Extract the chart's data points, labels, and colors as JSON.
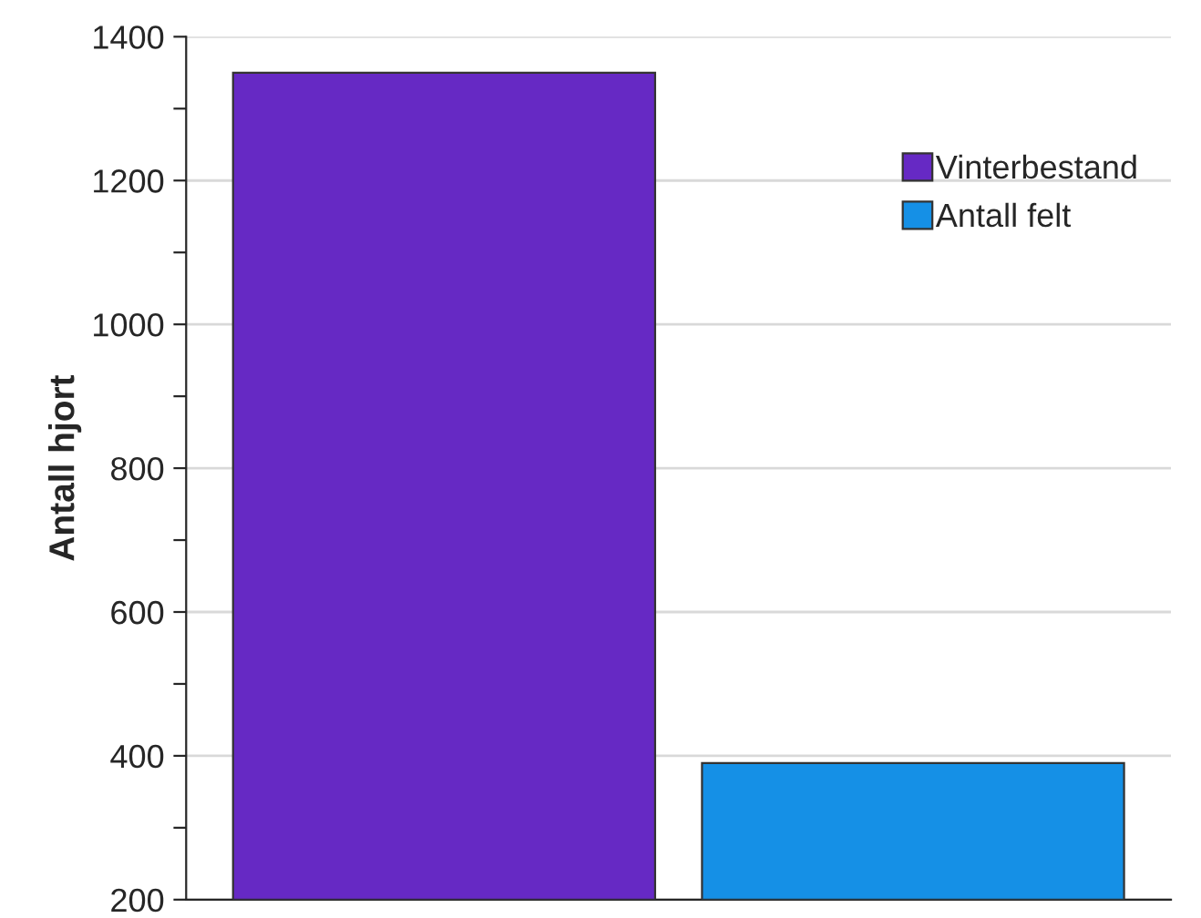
{
  "chart_data": {
    "type": "bar",
    "ylabel": "Antall hjort",
    "categories": [
      null,
      null
    ],
    "series": [
      {
        "name": "Vinterbestand",
        "color": "#6629c4",
        "values": [
          1350,
          null
        ]
      },
      {
        "name": "Antall felt",
        "color": "#1590e6",
        "values": [
          null,
          390
        ]
      }
    ],
    "ylim": [
      200,
      1400
    ],
    "yticks": [
      200,
      {
        "value": 300,
        "label": null
      },
      400,
      {
        "value": 500,
        "label": null
      },
      600,
      {
        "value": 700,
        "label": null
      },
      800,
      {
        "value": 900,
        "label": null
      },
      1000,
      {
        "value": 1100,
        "label": null
      },
      1200,
      {
        "value": 1300,
        "label": null
      },
      1400
    ],
    "grid": "y",
    "legend": "top right"
  }
}
